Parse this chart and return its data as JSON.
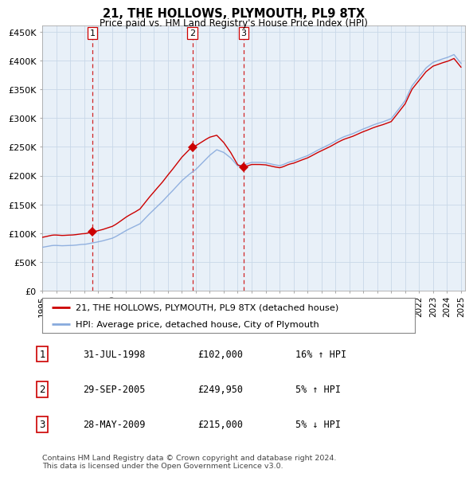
{
  "title": "21, THE HOLLOWS, PLYMOUTH, PL9 8TX",
  "subtitle": "Price paid vs. HM Land Registry's House Price Index (HPI)",
  "ylabel_ticks": [
    "£0",
    "£50K",
    "£100K",
    "£150K",
    "£200K",
    "£250K",
    "£300K",
    "£350K",
    "£400K",
    "£450K"
  ],
  "ytick_values": [
    0,
    50000,
    100000,
    150000,
    200000,
    250000,
    300000,
    350000,
    400000,
    450000
  ],
  "ylim": [
    0,
    462000
  ],
  "xlim_start": 1995.0,
  "xlim_end": 2025.3,
  "sales": [
    {
      "year": 1998.58,
      "price": 102000,
      "label": "1"
    },
    {
      "year": 2005.75,
      "price": 249950,
      "label": "2"
    },
    {
      "year": 2009.42,
      "price": 215000,
      "label": "3"
    }
  ],
  "sale_vline_color": "#cc0000",
  "sale_marker_color": "#cc0000",
  "hpi_line_color": "#88aadd",
  "price_line_color": "#cc0000",
  "legend_entries": [
    "21, THE HOLLOWS, PLYMOUTH, PL9 8TX (detached house)",
    "HPI: Average price, detached house, City of Plymouth"
  ],
  "table_rows": [
    {
      "num": "1",
      "date": "31-JUL-1998",
      "price": "£102,000",
      "hpi": "16% ↑ HPI"
    },
    {
      "num": "2",
      "date": "29-SEP-2005",
      "price": "£249,950",
      "hpi": "5% ↑ HPI"
    },
    {
      "num": "3",
      "date": "28-MAY-2009",
      "price": "£215,000",
      "hpi": "5% ↓ HPI"
    }
  ],
  "footer": "Contains HM Land Registry data © Crown copyright and database right 2024.\nThis data is licensed under the Open Government Licence v3.0.",
  "plot_bg": "#e8f0f8",
  "grid_color": "#c8d8e8"
}
